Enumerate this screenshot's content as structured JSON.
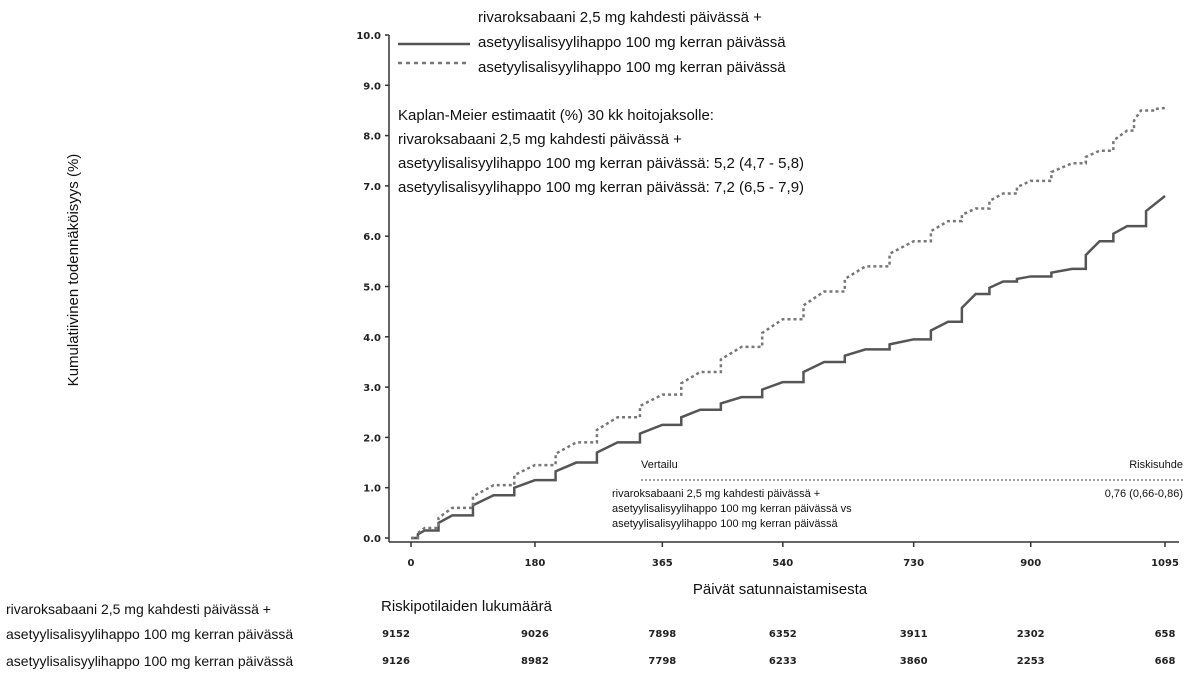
{
  "chart_data": {
    "type": "line",
    "ylabel": "Kumulatiivinen todennäköisyys (%)",
    "xlabel": "Päivät satunnaistamisesta",
    "ylim": [
      0,
      10
    ],
    "xlim": [
      0,
      1095
    ],
    "y_ticks": [
      "0.0",
      "1.0",
      "2.0",
      "3.0",
      "4.0",
      "5.0",
      "6.0",
      "7.0",
      "8.0",
      "9.0",
      "10.0"
    ],
    "x_ticks": [
      0,
      180,
      365,
      540,
      730,
      900,
      1095
    ],
    "legend": {
      "placement": "top",
      "entries": [
        {
          "line1": "rivaroksabaani 2,5 mg kahdesti päivässä +",
          "line2": "asetyylisalisyylihappo 100 mg kerran päivässä",
          "style": "solid"
        },
        {
          "line1": "asetyylisalisyylihappo 100 mg kerran päivässä",
          "line2": "",
          "style": "dotted"
        }
      ]
    },
    "series": [
      {
        "name": "rivaroksabaani 2,5 mg kahdesti päivässä + asetyylisalisyylihappo 100 mg kerran päivässä",
        "style": "solid",
        "color": "#555555",
        "x": [
          0,
          20,
          60,
          120,
          180,
          240,
          300,
          365,
          420,
          480,
          540,
          600,
          660,
          730,
          780,
          820,
          860,
          900,
          960,
          1000,
          1040,
          1095
        ],
        "y": [
          0,
          0.15,
          0.45,
          0.85,
          1.15,
          1.5,
          1.9,
          2.25,
          2.55,
          2.8,
          3.1,
          3.5,
          3.75,
          3.95,
          4.3,
          4.85,
          5.1,
          5.2,
          5.35,
          5.9,
          6.2,
          6.8
        ]
      },
      {
        "name": "asetyylisalisyylihappo 100 mg kerran päivässä",
        "style": "dotted",
        "color": "#777777",
        "x": [
          0,
          20,
          60,
          120,
          180,
          240,
          300,
          365,
          420,
          480,
          540,
          600,
          660,
          730,
          780,
          820,
          860,
          900,
          960,
          1000,
          1040,
          1060,
          1095
        ],
        "y": [
          0,
          0.2,
          0.6,
          1.05,
          1.45,
          1.9,
          2.4,
          2.85,
          3.3,
          3.8,
          4.35,
          4.9,
          5.4,
          5.9,
          6.3,
          6.55,
          6.85,
          7.1,
          7.45,
          7.7,
          8.1,
          8.5,
          8.55
        ]
      }
    ],
    "annotations": {
      "km_lines": [
        "Kaplan-Meier estimaatit (%) 30 kk hoitojaksolle:",
        "rivaroksabaani 2,5 mg kahdesti päivässä +",
        "asetyylisalisyylihappo 100 mg kerran päivässä: 5,2 (4,7 - 5,8)",
        "asetyylisalisyylihappo 100 mg kerran päivässä: 7,2 (6,5 - 7,9)"
      ],
      "comparison_header": "Vertailu",
      "hr_header": "Riskisuhde",
      "comparison_lines": [
        "rivaroksabaani 2,5 mg kahdesti päivässä +",
        "asetyylisalisyylihappo 100 mg kerran päivässä vs",
        "asetyylisalisyylihappo 100 mg kerran päivässä"
      ],
      "hr_value": "0,76 (0,66-0,86)"
    },
    "risk_table": {
      "title": "Riskipotilaiden lukumäärä",
      "rows": [
        {
          "label_line1": "rivaroksabaani 2,5 mg kahdesti päivässä +",
          "label_line2": "asetyylisalisyylihappo 100 mg kerran päivässä",
          "values": [
            9152,
            9026,
            7898,
            6352,
            3911,
            2302,
            658
          ]
        },
        {
          "label_line1": "",
          "label_line2": "asetyylisalisyylihappo 100 mg kerran päivässä",
          "values": [
            9126,
            8982,
            7798,
            6233,
            3860,
            2253,
            668
          ]
        }
      ]
    }
  }
}
